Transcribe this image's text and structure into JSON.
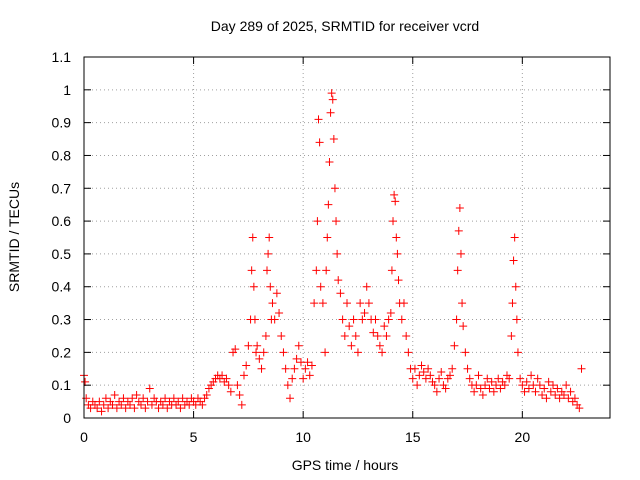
{
  "chart_data": {
    "type": "scatter",
    "title": "Day 289 of 2025, SRMTID for receiver vcrd",
    "xlabel": "GPS time / hours",
    "ylabel": "SRMTID / TECUs",
    "xlim": [
      0,
      24
    ],
    "ylim": [
      0,
      1.1
    ],
    "x_ticks": [
      0,
      5,
      10,
      15,
      20
    ],
    "y_ticks": [
      0,
      0.1,
      0.2,
      0.3,
      0.4,
      0.5,
      0.6,
      0.7,
      0.8,
      0.9,
      1,
      1.1
    ],
    "grid": true,
    "legend": "none",
    "marker": "+",
    "series": [
      {
        "name": "SRMTID",
        "color": "#ff0000",
        "points": [
          [
            0.0,
            0.13
          ],
          [
            0.05,
            0.11
          ],
          [
            0.1,
            0.06
          ],
          [
            0.2,
            0.04
          ],
          [
            0.3,
            0.03
          ],
          [
            0.4,
            0.05
          ],
          [
            0.5,
            0.04
          ],
          [
            0.6,
            0.03
          ],
          [
            0.7,
            0.05
          ],
          [
            0.8,
            0.02
          ],
          [
            0.9,
            0.04
          ],
          [
            1.0,
            0.06
          ],
          [
            1.1,
            0.03
          ],
          [
            1.2,
            0.05
          ],
          [
            1.3,
            0.04
          ],
          [
            1.4,
            0.07
          ],
          [
            1.5,
            0.03
          ],
          [
            1.6,
            0.05
          ],
          [
            1.7,
            0.04
          ],
          [
            1.8,
            0.06
          ],
          [
            1.9,
            0.03
          ],
          [
            2.0,
            0.05
          ],
          [
            2.1,
            0.04
          ],
          [
            2.2,
            0.06
          ],
          [
            2.3,
            0.03
          ],
          [
            2.4,
            0.07
          ],
          [
            2.5,
            0.05
          ],
          [
            2.6,
            0.04
          ],
          [
            2.7,
            0.06
          ],
          [
            2.8,
            0.03
          ],
          [
            2.9,
            0.05
          ],
          [
            3.0,
            0.09
          ],
          [
            3.1,
            0.04
          ],
          [
            3.2,
            0.06
          ],
          [
            3.3,
            0.05
          ],
          [
            3.4,
            0.03
          ],
          [
            3.5,
            0.05
          ],
          [
            3.6,
            0.04
          ],
          [
            3.7,
            0.06
          ],
          [
            3.8,
            0.03
          ],
          [
            3.9,
            0.05
          ],
          [
            4.0,
            0.04
          ],
          [
            4.1,
            0.06
          ],
          [
            4.2,
            0.04
          ],
          [
            4.3,
            0.05
          ],
          [
            4.4,
            0.03
          ],
          [
            4.5,
            0.06
          ],
          [
            4.6,
            0.04
          ],
          [
            4.7,
            0.05
          ],
          [
            4.8,
            0.04
          ],
          [
            4.9,
            0.06
          ],
          [
            5.0,
            0.05
          ],
          [
            5.1,
            0.04
          ],
          [
            5.2,
            0.06
          ],
          [
            5.3,
            0.05
          ],
          [
            5.4,
            0.04
          ],
          [
            5.5,
            0.06
          ],
          [
            5.6,
            0.07
          ],
          [
            5.7,
            0.09
          ],
          [
            5.8,
            0.1
          ],
          [
            5.9,
            0.11
          ],
          [
            6.0,
            0.12
          ],
          [
            6.1,
            0.13
          ],
          [
            6.2,
            0.12
          ],
          [
            6.3,
            0.13
          ],
          [
            6.4,
            0.11
          ],
          [
            6.5,
            0.12
          ],
          [
            6.6,
            0.1
          ],
          [
            6.7,
            0.08
          ],
          [
            6.8,
            0.2
          ],
          [
            6.9,
            0.21
          ],
          [
            7.0,
            0.1
          ],
          [
            7.1,
            0.07
          ],
          [
            7.2,
            0.04
          ],
          [
            7.3,
            0.13
          ],
          [
            7.4,
            0.16
          ],
          [
            7.5,
            0.22
          ],
          [
            7.6,
            0.3
          ],
          [
            7.65,
            0.45
          ],
          [
            7.7,
            0.55
          ],
          [
            7.75,
            0.4
          ],
          [
            7.8,
            0.3
          ],
          [
            7.85,
            0.2
          ],
          [
            7.9,
            0.22
          ],
          [
            8.0,
            0.18
          ],
          [
            8.1,
            0.15
          ],
          [
            8.2,
            0.2
          ],
          [
            8.3,
            0.25
          ],
          [
            8.35,
            0.45
          ],
          [
            8.4,
            0.5
          ],
          [
            8.45,
            0.55
          ],
          [
            8.5,
            0.4
          ],
          [
            8.55,
            0.3
          ],
          [
            8.6,
            0.35
          ],
          [
            8.7,
            0.3
          ],
          [
            8.8,
            0.38
          ],
          [
            8.9,
            0.32
          ],
          [
            9.0,
            0.25
          ],
          [
            9.1,
            0.2
          ],
          [
            9.2,
            0.15
          ],
          [
            9.3,
            0.1
          ],
          [
            9.4,
            0.06
          ],
          [
            9.5,
            0.12
          ],
          [
            9.6,
            0.15
          ],
          [
            9.7,
            0.18
          ],
          [
            9.8,
            0.22
          ],
          [
            9.9,
            0.17
          ],
          [
            10.0,
            0.12
          ],
          [
            10.1,
            0.15
          ],
          [
            10.2,
            0.17
          ],
          [
            10.3,
            0.13
          ],
          [
            10.4,
            0.16
          ],
          [
            10.5,
            0.35
          ],
          [
            10.6,
            0.45
          ],
          [
            10.65,
            0.6
          ],
          [
            10.7,
            0.91
          ],
          [
            10.75,
            0.84
          ],
          [
            10.8,
            0.4
          ],
          [
            10.9,
            0.35
          ],
          [
            11.0,
            0.2
          ],
          [
            11.05,
            0.45
          ],
          [
            11.1,
            0.55
          ],
          [
            11.15,
            0.65
          ],
          [
            11.2,
            0.78
          ],
          [
            11.25,
            0.93
          ],
          [
            11.3,
            0.99
          ],
          [
            11.35,
            0.97
          ],
          [
            11.4,
            0.85
          ],
          [
            11.45,
            0.7
          ],
          [
            11.5,
            0.6
          ],
          [
            11.55,
            0.5
          ],
          [
            11.6,
            0.42
          ],
          [
            11.7,
            0.38
          ],
          [
            11.8,
            0.3
          ],
          [
            11.9,
            0.25
          ],
          [
            12.0,
            0.35
          ],
          [
            12.1,
            0.28
          ],
          [
            12.2,
            0.22
          ],
          [
            12.3,
            0.3
          ],
          [
            12.4,
            0.25
          ],
          [
            12.5,
            0.2
          ],
          [
            12.6,
            0.35
          ],
          [
            12.7,
            0.3
          ],
          [
            12.8,
            0.32
          ],
          [
            12.9,
            0.4
          ],
          [
            13.0,
            0.35
          ],
          [
            13.1,
            0.3
          ],
          [
            13.2,
            0.26
          ],
          [
            13.3,
            0.3
          ],
          [
            13.4,
            0.25
          ],
          [
            13.5,
            0.22
          ],
          [
            13.6,
            0.2
          ],
          [
            13.7,
            0.28
          ],
          [
            13.8,
            0.25
          ],
          [
            13.9,
            0.3
          ],
          [
            14.0,
            0.32
          ],
          [
            14.05,
            0.45
          ],
          [
            14.1,
            0.6
          ],
          [
            14.15,
            0.68
          ],
          [
            14.2,
            0.66
          ],
          [
            14.25,
            0.55
          ],
          [
            14.3,
            0.5
          ],
          [
            14.35,
            0.42
          ],
          [
            14.4,
            0.35
          ],
          [
            14.5,
            0.3
          ],
          [
            14.6,
            0.35
          ],
          [
            14.7,
            0.25
          ],
          [
            14.8,
            0.2
          ],
          [
            14.9,
            0.15
          ],
          [
            15.0,
            0.12
          ],
          [
            15.1,
            0.15
          ],
          [
            15.2,
            0.1
          ],
          [
            15.3,
            0.13
          ],
          [
            15.4,
            0.16
          ],
          [
            15.5,
            0.14
          ],
          [
            15.6,
            0.12
          ],
          [
            15.7,
            0.15
          ],
          [
            15.8,
            0.13
          ],
          [
            15.9,
            0.11
          ],
          [
            16.0,
            0.1
          ],
          [
            16.1,
            0.08
          ],
          [
            16.2,
            0.12
          ],
          [
            16.3,
            0.14
          ],
          [
            16.4,
            0.1
          ],
          [
            16.5,
            0.09
          ],
          [
            16.6,
            0.12
          ],
          [
            16.7,
            0.13
          ],
          [
            16.8,
            0.15
          ],
          [
            16.9,
            0.22
          ],
          [
            17.0,
            0.3
          ],
          [
            17.05,
            0.45
          ],
          [
            17.1,
            0.57
          ],
          [
            17.15,
            0.64
          ],
          [
            17.2,
            0.5
          ],
          [
            17.25,
            0.35
          ],
          [
            17.3,
            0.28
          ],
          [
            17.4,
            0.2
          ],
          [
            17.5,
            0.15
          ],
          [
            17.6,
            0.12
          ],
          [
            17.7,
            0.1
          ],
          [
            17.8,
            0.08
          ],
          [
            17.9,
            0.1
          ],
          [
            18.0,
            0.13
          ],
          [
            18.1,
            0.09
          ],
          [
            18.2,
            0.07
          ],
          [
            18.3,
            0.1
          ],
          [
            18.4,
            0.12
          ],
          [
            18.5,
            0.09
          ],
          [
            18.6,
            0.11
          ],
          [
            18.7,
            0.08
          ],
          [
            18.8,
            0.1
          ],
          [
            18.9,
            0.12
          ],
          [
            19.0,
            0.09
          ],
          [
            19.1,
            0.11
          ],
          [
            19.2,
            0.1
          ],
          [
            19.3,
            0.13
          ],
          [
            19.4,
            0.12
          ],
          [
            19.5,
            0.25
          ],
          [
            19.55,
            0.35
          ],
          [
            19.6,
            0.48
          ],
          [
            19.65,
            0.55
          ],
          [
            19.7,
            0.4
          ],
          [
            19.75,
            0.3
          ],
          [
            19.8,
            0.2
          ],
          [
            19.9,
            0.12
          ],
          [
            20.0,
            0.1
          ],
          [
            20.1,
            0.08
          ],
          [
            20.2,
            0.11
          ],
          [
            20.3,
            0.09
          ],
          [
            20.4,
            0.13
          ],
          [
            20.5,
            0.1
          ],
          [
            20.6,
            0.08
          ],
          [
            20.7,
            0.12
          ],
          [
            20.8,
            0.1
          ],
          [
            20.9,
            0.07
          ],
          [
            21.0,
            0.09
          ],
          [
            21.1,
            0.06
          ],
          [
            21.2,
            0.11
          ],
          [
            21.3,
            0.08
          ],
          [
            21.4,
            0.1
          ],
          [
            21.5,
            0.07
          ],
          [
            21.6,
            0.09
          ],
          [
            21.7,
            0.06
          ],
          [
            21.8,
            0.08
          ],
          [
            21.9,
            0.07
          ],
          [
            22.0,
            0.1
          ],
          [
            22.1,
            0.06
          ],
          [
            22.2,
            0.08
          ],
          [
            22.3,
            0.05
          ],
          [
            22.4,
            0.06
          ],
          [
            22.5,
            0.04
          ],
          [
            22.6,
            0.03
          ],
          [
            22.7,
            0.15
          ]
        ]
      }
    ]
  }
}
